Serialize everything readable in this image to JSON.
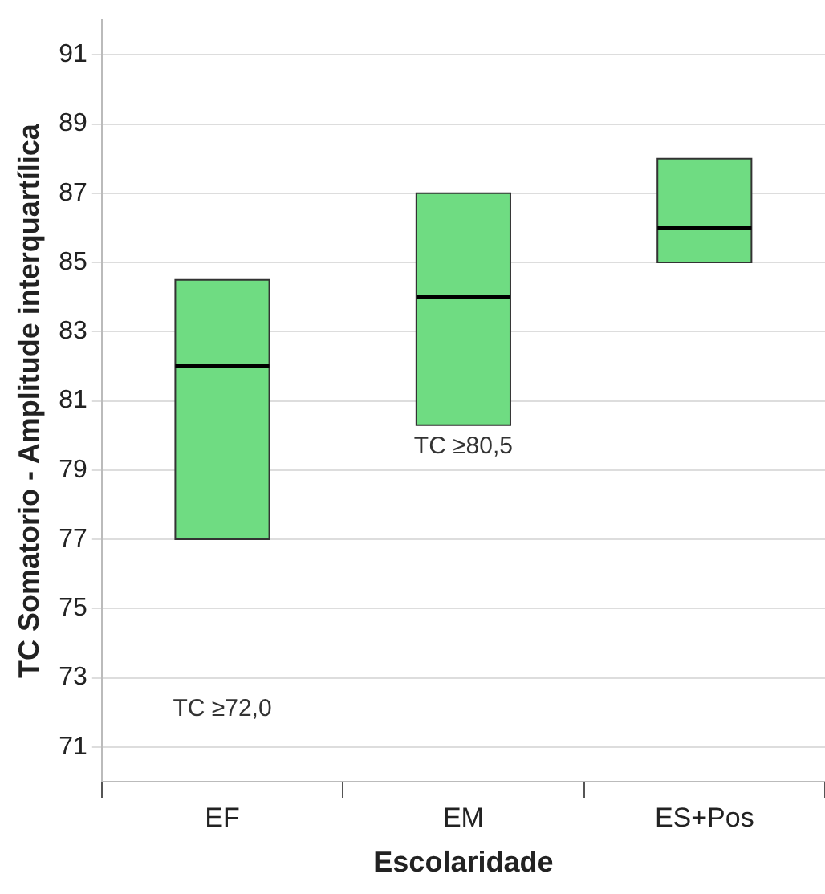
{
  "chart_data": {
    "type": "box",
    "xlabel": "Escolaridade",
    "ylabel": "TC Somatorio - Amplitude interquartílica",
    "categories": [
      "EF",
      "EM",
      "ES+Pos"
    ],
    "boxes": [
      {
        "low": 77,
        "q1": 77,
        "median": 82,
        "q3": 84.5,
        "high": 84.5
      },
      {
        "low": 80.3,
        "q1": 80.3,
        "median": 84,
        "q3": 87,
        "high": 87
      },
      {
        "low": 85,
        "q1": 85,
        "median": 86,
        "q3": 88,
        "high": 88
      }
    ],
    "color": "#6fdc82",
    "ylim": [
      70,
      92
    ],
    "yticks": [
      71,
      73,
      75,
      77,
      79,
      81,
      83,
      85,
      87,
      89,
      91
    ],
    "grid": "y",
    "annotations": [
      "TC ≥72,0",
      "TC ≥80,5"
    ]
  }
}
